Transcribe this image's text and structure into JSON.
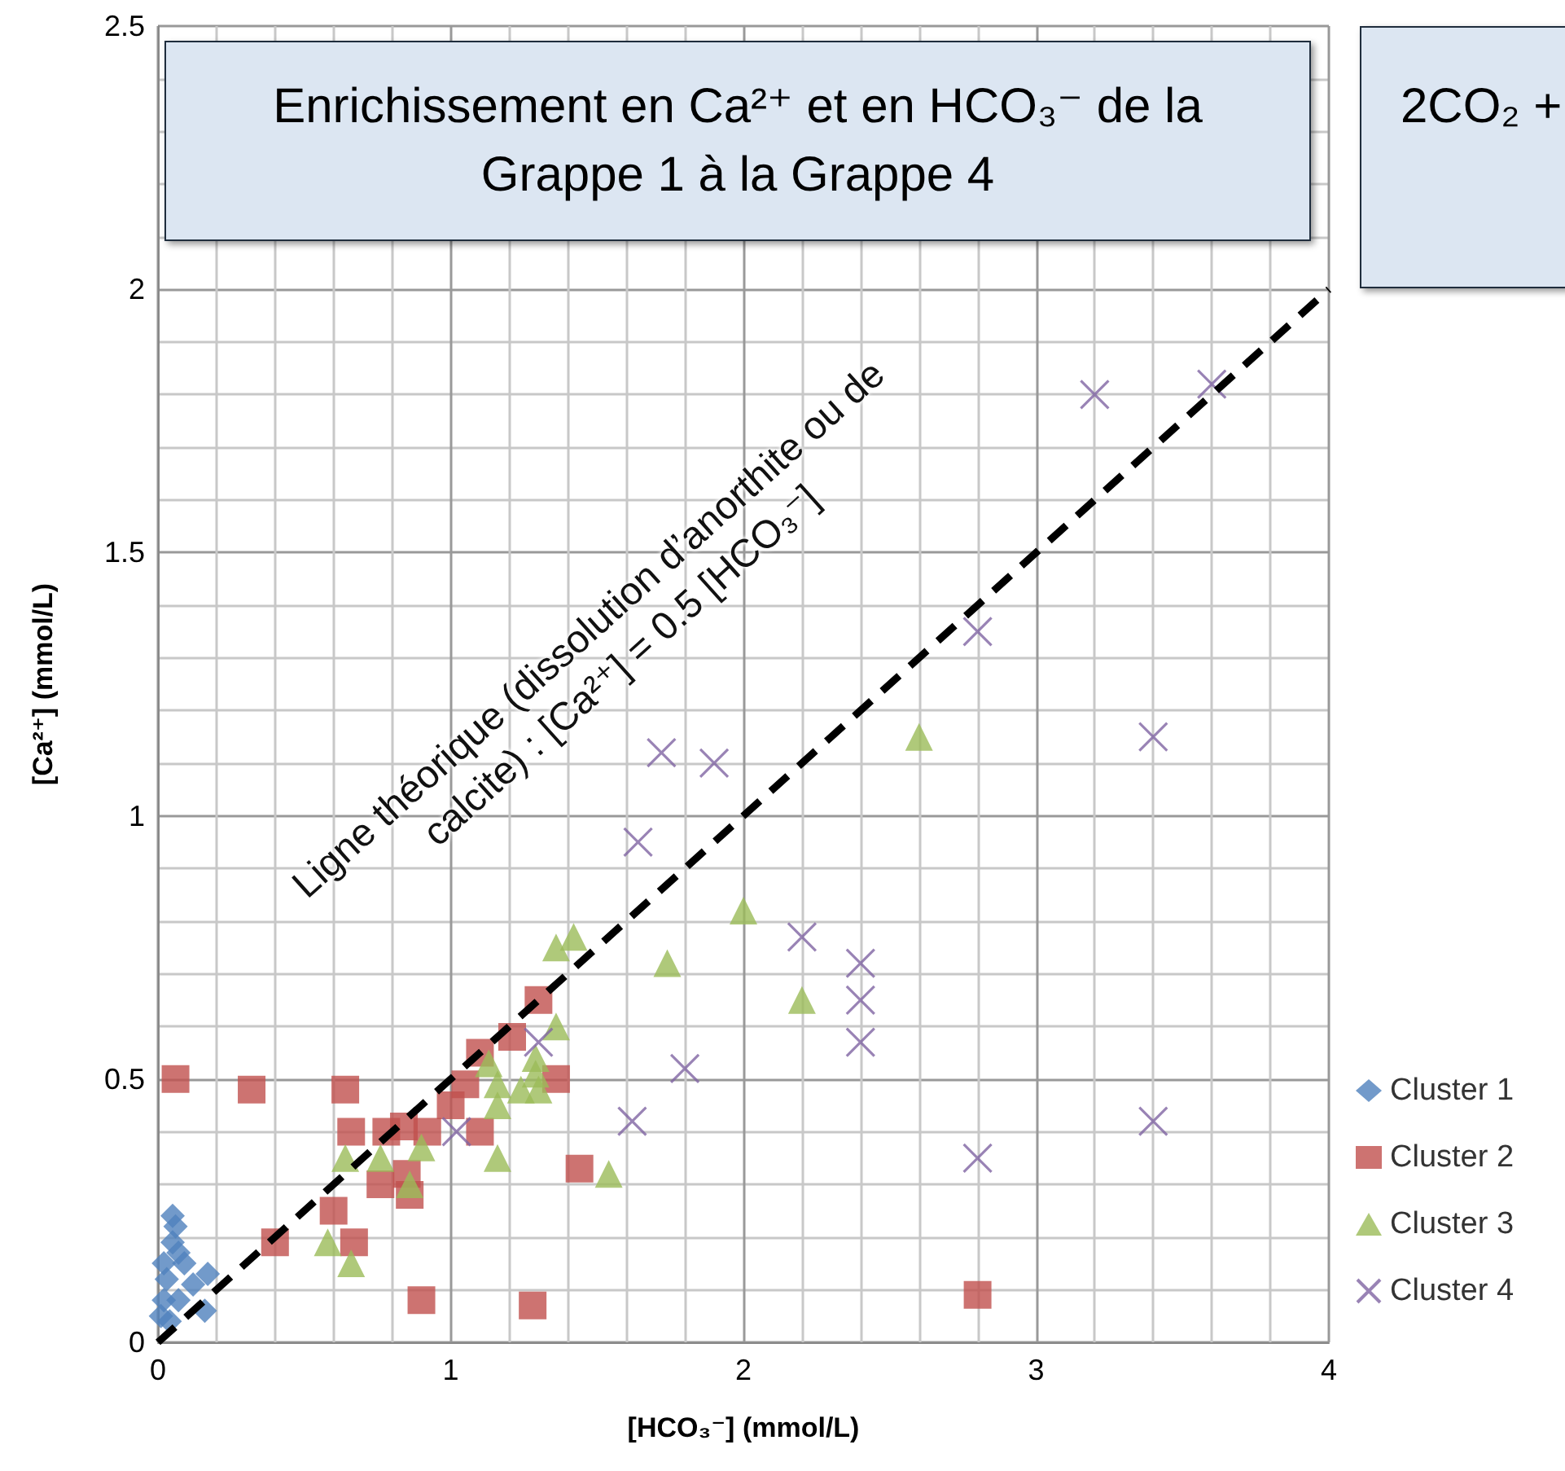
{
  "chart_data": {
    "type": "scatter",
    "title": "Enrichissement en Ca²⁺ et en HCO₃⁻ de la Grappe 1 à la Grappe 4",
    "xlabel": "[HCO₃⁻] (mmol/L)",
    "ylabel": "[Ca²⁺] (mmol/L)",
    "annotations": [
      "Ligne théorique (dissolution d’anorthite ou de calcite) : [Ca²⁺] = 0.5 [HCO₃⁻]",
      "2CO₂ +"
    ],
    "xlim": [
      0,
      4
    ],
    "xticks": [
      0,
      1,
      2,
      3,
      4
    ],
    "ylim": [
      0,
      2.5
    ],
    "yticks": [
      0,
      0.5,
      1,
      1.5,
      2,
      2.5
    ],
    "grid": true,
    "legend": "right",
    "series": [
      {
        "name": "Cluster 1",
        "color": "#4f81bd",
        "marker": "diamond",
        "x": [
          0.05,
          0.06,
          0.05,
          0.07,
          0.02,
          0.09,
          0.17,
          0.03,
          0.12,
          0.02,
          0.07,
          0.01,
          0.16,
          0.04
        ],
        "values": [
          0.24,
          0.22,
          0.19,
          0.17,
          0.15,
          0.15,
          0.13,
          0.12,
          0.11,
          0.08,
          0.08,
          0.05,
          0.06,
          0.04
        ]
      },
      {
        "name": "Cluster 2",
        "color": "#c0504d",
        "marker": "square",
        "x": [
          0.06,
          0.32,
          0.64,
          1.3,
          1.21,
          1.1,
          1.36,
          1.05,
          1.0,
          1.1,
          0.92,
          0.84,
          0.78,
          0.66,
          0.85,
          0.76,
          0.86,
          0.6,
          0.67,
          0.4,
          1.44,
          0.9,
          1.28,
          2.8
        ],
        "values": [
          0.5,
          0.48,
          0.48,
          0.65,
          0.58,
          0.55,
          0.5,
          0.49,
          0.45,
          0.4,
          0.4,
          0.41,
          0.4,
          0.4,
          0.32,
          0.3,
          0.28,
          0.25,
          0.19,
          0.19,
          0.33,
          0.08,
          0.07,
          0.09
        ]
      },
      {
        "name": "Cluster 3",
        "color": "#9bbb59",
        "marker": "triangle",
        "x": [
          2.0,
          2.6,
          2.2,
          1.74,
          1.42,
          1.36,
          1.36,
          1.29,
          1.13,
          1.16,
          1.29,
          1.24,
          1.3,
          1.16,
          1.16,
          0.9,
          0.76,
          0.64,
          0.86,
          1.54,
          0.58,
          0.66
        ],
        "values": [
          0.82,
          1.15,
          0.65,
          0.72,
          0.77,
          0.75,
          0.6,
          0.54,
          0.53,
          0.49,
          0.51,
          0.48,
          0.48,
          0.45,
          0.35,
          0.37,
          0.35,
          0.35,
          0.3,
          0.32,
          0.19,
          0.15
        ]
      },
      {
        "name": "Cluster 4",
        "color": "#8064a2",
        "marker": "cross",
        "x": [
          3.2,
          3.6,
          2.8,
          3.4,
          1.72,
          1.9,
          1.64,
          2.2,
          2.4,
          2.4,
          2.4,
          1.8,
          1.62,
          3.4,
          2.8,
          1.3,
          1.02
        ],
        "values": [
          1.8,
          1.82,
          1.35,
          1.15,
          1.12,
          1.1,
          0.95,
          0.77,
          0.72,
          0.65,
          0.57,
          0.52,
          0.42,
          0.42,
          0.35,
          0.57,
          0.4
        ]
      },
      {
        "type": "line",
        "color": "#000000",
        "marker": "none",
        "line_style": "dashed",
        "x": [
          0,
          4
        ],
        "values": [
          0,
          2
        ]
      }
    ]
  }
}
